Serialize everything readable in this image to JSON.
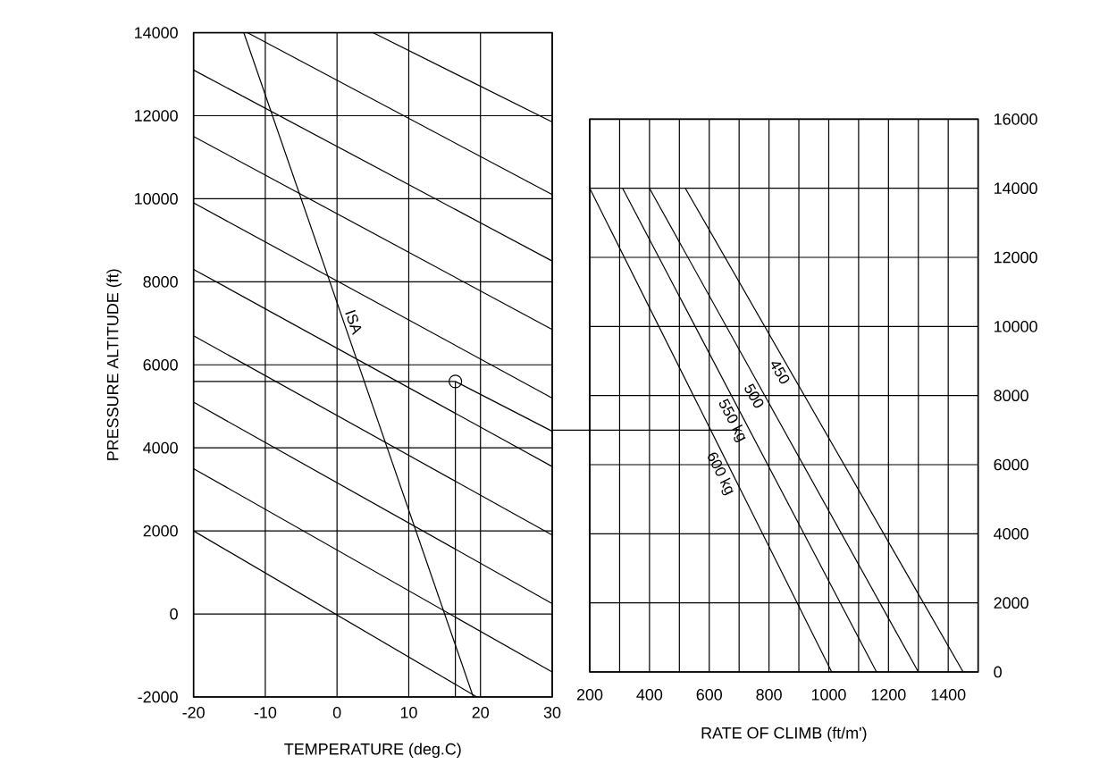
{
  "chart_data": [
    {
      "type": "line",
      "xlabel": "TEMPERATURE (deg.C)",
      "ylabel": "PRESSURE ALTITUDE (ft)",
      "xlim": [
        -20,
        30
      ],
      "ylim": [
        -2000,
        14000
      ],
      "xticks": [
        -20,
        -10,
        0,
        10,
        20,
        30
      ],
      "yticks": [
        -2000,
        0,
        2000,
        4000,
        6000,
        8000,
        10000,
        12000,
        14000
      ],
      "grid": true,
      "series": [
        {
          "color": "#000000",
          "x": [
            5,
            30
          ],
          "values": [
            14000,
            11850
          ]
        },
        {
          "color": "#000000",
          "x": [
            -12.5,
            30
          ],
          "values": [
            14000,
            10100
          ]
        },
        {
          "color": "#000000",
          "x": [
            -20,
            30
          ],
          "values": [
            13100,
            8500
          ]
        },
        {
          "color": "#000000",
          "x": [
            -20,
            30
          ],
          "values": [
            11500,
            6850
          ]
        },
        {
          "color": "#000000",
          "x": [
            -20,
            30
          ],
          "values": [
            9900,
            5200
          ]
        },
        {
          "color": "#000000",
          "x": [
            -20,
            30
          ],
          "values": [
            8300,
            3550
          ]
        },
        {
          "color": "#000000",
          "x": [
            -20,
            30
          ],
          "values": [
            6700,
            1900
          ]
        },
        {
          "color": "#000000",
          "x": [
            -20,
            30
          ],
          "values": [
            5100,
            250
          ]
        },
        {
          "color": "#000000",
          "x": [
            -20,
            30
          ],
          "values": [
            3500,
            -1400
          ]
        },
        {
          "color": "#000000",
          "x": [
            -20,
            19.5
          ],
          "values": [
            2000,
            -2000
          ]
        },
        {
          "name": "ISA",
          "color": "#000000",
          "x": [
            -13,
            19
          ],
          "values": [
            14000,
            -2000
          ]
        },
        {
          "color": "#000000",
          "x": [
            -20,
            16.5
          ],
          "values": [
            5600,
            5600
          ]
        },
        {
          "color": "#000000",
          "x": [
            16.5,
            16.5
          ],
          "values": [
            5600,
            -2000
          ]
        },
        {
          "color": "#000000",
          "x": [
            16.5,
            30
          ],
          "values": [
            5600,
            4400
          ]
        },
        {
          "type": "scatter",
          "marker": "circle",
          "color": "#000000",
          "x": [
            16.5
          ],
          "values": [
            5600
          ]
        }
      ]
    },
    {
      "type": "line",
      "xlabel": "RATE OF CLIMB (ft/m')",
      "xlim": [
        200,
        1500
      ],
      "ylim": [
        0,
        16000
      ],
      "xticks": [
        200,
        {
          "value": 300,
          "label": null
        },
        400,
        {
          "value": 500,
          "label": null
        },
        600,
        {
          "value": 700,
          "label": null
        },
        800,
        {
          "value": 900,
          "label": null
        },
        1000,
        {
          "value": 1100,
          "label": null
        },
        1200,
        {
          "value": 1300,
          "label": null
        },
        1400,
        {
          "value": 1500,
          "label": null
        }
      ],
      "yticks": [
        0,
        2000,
        4000,
        6000,
        8000,
        10000,
        12000,
        14000,
        16000
      ],
      "grid": true,
      "series": [
        {
          "name": "450",
          "color": "#000000",
          "x": [
            520,
            1450
          ],
          "values": [
            14000,
            0
          ]
        },
        {
          "name": "500",
          "color": "#000000",
          "x": [
            400,
            1300
          ],
          "values": [
            14000,
            0
          ]
        },
        {
          "name": "550 kg",
          "color": "#000000",
          "x": [
            310,
            1160
          ],
          "values": [
            14000,
            0
          ]
        },
        {
          "name": "600 kg",
          "color": "#000000",
          "x": [
            200,
            1010
          ],
          "values": [
            14000,
            0
          ]
        },
        {
          "color": "#000000",
          "x": [
            200,
            700
          ],
          "values": [
            7000,
            7000
          ]
        }
      ]
    }
  ]
}
